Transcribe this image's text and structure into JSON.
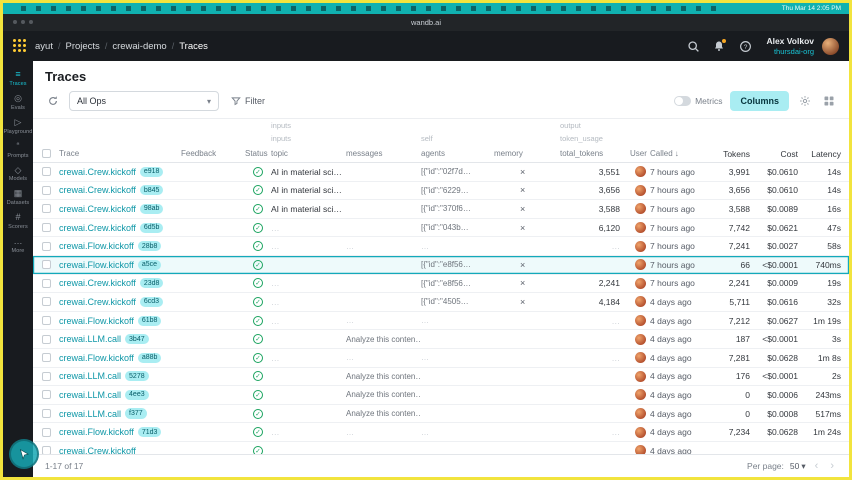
{
  "chrome": {
    "menubar": {
      "time": "Thu Mar 14 2:05 PM"
    },
    "browser": {
      "url": "wandb.ai"
    }
  },
  "header": {
    "breadcrumbs": [
      "ayut",
      "Projects",
      "crewai-demo",
      "Traces"
    ],
    "user": {
      "name": "Alex Volkov",
      "org": "thursdai-org"
    }
  },
  "sidebar": {
    "items": [
      {
        "label": "Traces",
        "icon": "traces-icon",
        "glyph": "≡",
        "active": true
      },
      {
        "label": "Evals",
        "icon": "evals-icon",
        "glyph": "◎",
        "active": false
      },
      {
        "label": "Playground",
        "icon": "playground-icon",
        "glyph": "▷",
        "active": false
      },
      {
        "label": "Prompts",
        "icon": "prompts-icon",
        "glyph": "“",
        "active": false
      },
      {
        "label": "Models",
        "icon": "models-icon",
        "glyph": "◇",
        "active": false
      },
      {
        "label": "Datasets",
        "icon": "datasets-icon",
        "glyph": "▦",
        "active": false
      },
      {
        "label": "Scorers",
        "icon": "scorers-icon",
        "glyph": "#",
        "active": false
      },
      {
        "label": "More",
        "icon": "more-icon",
        "glyph": "…",
        "active": false
      }
    ]
  },
  "page": {
    "title": "Traces"
  },
  "toolbar": {
    "ops": "All Ops",
    "filter": "Filter",
    "metrics": "Metrics",
    "columns": "Columns"
  },
  "table": {
    "groups": {
      "inputs": "inputs",
      "output": "output"
    },
    "subgroups": {
      "inputs": "inputs",
      "self": "self",
      "token_usage": "token_usage"
    },
    "columns": [
      "Trace",
      "Feedback",
      "Status",
      "topic",
      "messages",
      "agents",
      "memory",
      "total_tokens",
      "User",
      "Called",
      "Tokens",
      "Cost",
      "Latency"
    ],
    "rows": [
      {
        "name": "crewai.Crew.kickoff",
        "ver": "e918",
        "topic": "AI in material science",
        "messages": "",
        "agents": "[{\"id\":\"02f7d…",
        "memory": true,
        "total": "3,551",
        "called": "7 hours ago",
        "tokens": "3,991",
        "cost": "$0.0610",
        "latency": "14s",
        "selected": false
      },
      {
        "name": "crewai.Crew.kickoff",
        "ver": "b845",
        "topic": "AI in material science",
        "messages": "",
        "agents": "[{\"id\":\"6229…",
        "memory": true,
        "total": "3,656",
        "called": "7 hours ago",
        "tokens": "3,656",
        "cost": "$0.0610",
        "latency": "14s",
        "selected": false
      },
      {
        "name": "crewai.Crew.kickoff",
        "ver": "98ab",
        "topic": "AI in material science",
        "messages": "",
        "agents": "[{\"id\":\"370f6…",
        "memory": true,
        "total": "3,588",
        "called": "7 hours ago",
        "tokens": "3,588",
        "cost": "$0.0089",
        "latency": "16s",
        "selected": false
      },
      {
        "name": "crewai.Crew.kickoff",
        "ver": "6d5b",
        "topic": "…",
        "messages": "",
        "agents": "[{\"id\":\"043b…",
        "memory": true,
        "total": "6,120",
        "called": "7 hours ago",
        "tokens": "7,742",
        "cost": "$0.0621",
        "latency": "47s",
        "selected": false
      },
      {
        "name": "crewai.Flow.kickoff",
        "ver": "28b8",
        "topic": "…",
        "messages": "…",
        "agents": "…",
        "memory": false,
        "total": "…",
        "called": "7 hours ago",
        "tokens": "7,241",
        "cost": "$0.0027",
        "latency": "58s",
        "selected": false
      },
      {
        "name": "crewai.Flow.kickoff",
        "ver": "a5ce",
        "topic": "",
        "messages": "",
        "agents": "[{\"id\":\"e8f56…",
        "memory": true,
        "total": "",
        "called": "7 hours ago",
        "tokens": "66",
        "cost": "<$0.0001",
        "latency": "740ms",
        "selected": true
      },
      {
        "name": "crewai.Crew.kickoff",
        "ver": "23d8",
        "topic": "…",
        "messages": "",
        "agents": "[{\"id\":\"e8f56…",
        "memory": true,
        "total": "2,241",
        "called": "7 hours ago",
        "tokens": "2,241",
        "cost": "$0.0009",
        "latency": "19s",
        "selected": false
      },
      {
        "name": "crewai.Crew.kickoff",
        "ver": "6cd3",
        "topic": "…",
        "messages": "",
        "agents": "[{\"id\":\"4505…",
        "memory": true,
        "total": "4,184",
        "called": "4 days ago",
        "tokens": "5,711",
        "cost": "$0.0616",
        "latency": "32s",
        "selected": false
      },
      {
        "name": "crewai.Flow.kickoff",
        "ver": "61b8",
        "topic": "…",
        "messages": "…",
        "agents": "…",
        "memory": false,
        "total": "…",
        "called": "4 days ago",
        "tokens": "7,212",
        "cost": "$0.0627",
        "latency": "1m 19s",
        "selected": false
      },
      {
        "name": "crewai.LLM.call",
        "ver": "3b47",
        "topic": "",
        "messages": "Analyze this conten…",
        "agents": "",
        "memory": false,
        "total": "",
        "called": "4 days ago",
        "tokens": "187",
        "cost": "<$0.0001",
        "latency": "3s",
        "selected": false
      },
      {
        "name": "crewai.Flow.kickoff",
        "ver": "a88b",
        "topic": "…",
        "messages": "…",
        "agents": "…",
        "memory": false,
        "total": "…",
        "called": "4 days ago",
        "tokens": "7,281",
        "cost": "$0.0628",
        "latency": "1m 8s",
        "selected": false
      },
      {
        "name": "crewai.LLM.call",
        "ver": "5278",
        "topic": "",
        "messages": "Analyze this conten…",
        "agents": "",
        "memory": false,
        "total": "",
        "called": "4 days ago",
        "tokens": "176",
        "cost": "<$0.0001",
        "latency": "2s",
        "selected": false
      },
      {
        "name": "crewai.LLM.call",
        "ver": "4ee3",
        "topic": "",
        "messages": "Analyze this conten…",
        "agents": "",
        "memory": false,
        "total": "",
        "called": "4 days ago",
        "tokens": "0",
        "cost": "$0.0006",
        "latency": "243ms",
        "selected": false
      },
      {
        "name": "crewai.LLM.call",
        "ver": "f377",
        "topic": "",
        "messages": "Analyze this conten…",
        "agents": "",
        "memory": false,
        "total": "",
        "called": "4 days ago",
        "tokens": "0",
        "cost": "$0.0008",
        "latency": "517ms",
        "selected": false
      },
      {
        "name": "crewai.Flow.kickoff",
        "ver": "71d3",
        "topic": "…",
        "messages": "…",
        "agents": "…",
        "memory": false,
        "total": "…",
        "called": "4 days ago",
        "tokens": "7,234",
        "cost": "$0.0628",
        "latency": "1m 24s",
        "selected": false
      },
      {
        "name": "crewai.Crew.kickoff",
        "ver": "",
        "topic": "",
        "messages": "",
        "agents": "",
        "memory": false,
        "total": "",
        "called": "4 days ago",
        "tokens": "",
        "cost": "",
        "latency": "",
        "selected": false
      }
    ]
  },
  "footer": {
    "range": "1-17 of 17",
    "per_page_label": "Per page:",
    "per_page": "50"
  },
  "colors": {
    "accent_teal": "#13A9BA",
    "success_green": "#1AA35F",
    "chip_bg": "#A9EDF2",
    "header_dark": "#181B1F",
    "menubar_teal": "#10B1B0",
    "record_border_yellow": "#F2E43D",
    "link_teal": "#0E97A7"
  }
}
